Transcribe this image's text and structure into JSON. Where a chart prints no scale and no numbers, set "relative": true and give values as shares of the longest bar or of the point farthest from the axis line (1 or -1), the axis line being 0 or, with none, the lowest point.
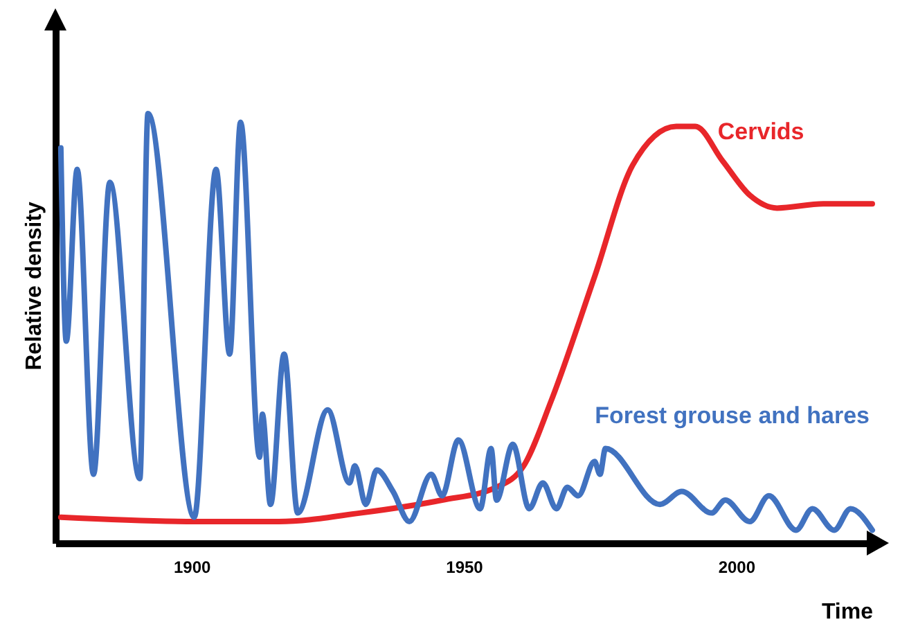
{
  "chart_data": {
    "type": "line",
    "xlabel": "Time",
    "ylabel": "Relative density",
    "relative": true,
    "xlim": [
      1875,
      2025
    ],
    "xticks": [
      1900,
      1950,
      2000
    ],
    "grid": false,
    "marker": "none",
    "line_style": "solid",
    "series": [
      {
        "name": "Cervids",
        "color": "#e8262a",
        "x": [
          1876,
          1901,
          1916,
          1931,
          1946,
          1956,
          1961,
          1966,
          1974,
          1981,
          1989,
          1992.5,
          1997.5,
          2002.5,
          2007.5,
          2016,
          2025
        ],
        "values": [
          0.06,
          0.05,
          0.05,
          0.07,
          0.1,
          0.13,
          0.18,
          0.33,
          0.62,
          0.88,
          0.97,
          0.97,
          0.89,
          0.81,
          0.78,
          0.79,
          0.79
        ]
      },
      {
        "name": "Forest grouse and hares",
        "color": "#4172c0",
        "x": [
          1876,
          1877,
          1879,
          1882,
          1885,
          1890.5,
          1892,
          1900.5,
          1904.5,
          1907,
          1909,
          1912.5,
          1913,
          1914.5,
          1917,
          1919.5,
          1925,
          1929,
          1930,
          1932,
          1934,
          1937,
          1940,
          1944,
          1946,
          1949,
          1953,
          1955,
          1956,
          1959,
          1962,
          1964.5,
          1967,
          1969,
          1971,
          1974,
          1975,
          1976,
          1986,
          1990,
          1995.5,
          1998,
          2002.5,
          2006,
          2011,
          2014,
          2018,
          2021,
          2025
        ],
        "values": [
          0.92,
          0.47,
          0.87,
          0.16,
          0.84,
          0.15,
          1.0,
          0.06,
          0.87,
          0.44,
          0.98,
          0.2,
          0.3,
          0.09,
          0.44,
          0.07,
          0.31,
          0.14,
          0.18,
          0.09,
          0.17,
          0.12,
          0.05,
          0.16,
          0.11,
          0.24,
          0.08,
          0.22,
          0.1,
          0.23,
          0.08,
          0.14,
          0.08,
          0.13,
          0.11,
          0.19,
          0.16,
          0.22,
          0.09,
          0.12,
          0.07,
          0.1,
          0.05,
          0.11,
          0.03,
          0.08,
          0.03,
          0.08,
          0.03
        ]
      }
    ]
  }
}
